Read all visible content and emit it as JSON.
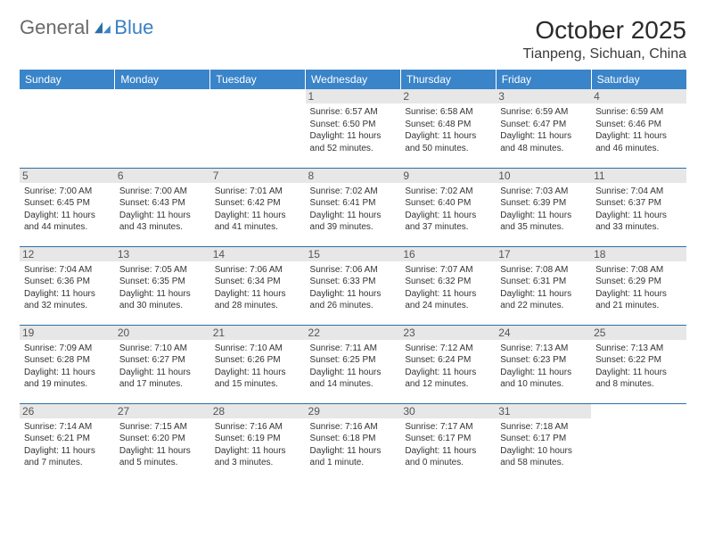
{
  "logo": {
    "text1": "General",
    "text2": "Blue"
  },
  "title": "October 2025",
  "location": "Tianpeng, Sichuan, China",
  "colors": {
    "header_bg": "#3a84c9",
    "header_text": "#ffffff",
    "day_bg": "#e7e7e7",
    "border": "#2c6fa8",
    "logo_accent": "#3a7fc4"
  },
  "weekdays": [
    "Sunday",
    "Monday",
    "Tuesday",
    "Wednesday",
    "Thursday",
    "Friday",
    "Saturday"
  ],
  "weeks": [
    [
      null,
      null,
      null,
      {
        "n": "1",
        "sr": "6:57 AM",
        "ss": "6:50 PM",
        "dl": "11 hours and 52 minutes."
      },
      {
        "n": "2",
        "sr": "6:58 AM",
        "ss": "6:48 PM",
        "dl": "11 hours and 50 minutes."
      },
      {
        "n": "3",
        "sr": "6:59 AM",
        "ss": "6:47 PM",
        "dl": "11 hours and 48 minutes."
      },
      {
        "n": "4",
        "sr": "6:59 AM",
        "ss": "6:46 PM",
        "dl": "11 hours and 46 minutes."
      }
    ],
    [
      {
        "n": "5",
        "sr": "7:00 AM",
        "ss": "6:45 PM",
        "dl": "11 hours and 44 minutes."
      },
      {
        "n": "6",
        "sr": "7:00 AM",
        "ss": "6:43 PM",
        "dl": "11 hours and 43 minutes."
      },
      {
        "n": "7",
        "sr": "7:01 AM",
        "ss": "6:42 PM",
        "dl": "11 hours and 41 minutes."
      },
      {
        "n": "8",
        "sr": "7:02 AM",
        "ss": "6:41 PM",
        "dl": "11 hours and 39 minutes."
      },
      {
        "n": "9",
        "sr": "7:02 AM",
        "ss": "6:40 PM",
        "dl": "11 hours and 37 minutes."
      },
      {
        "n": "10",
        "sr": "7:03 AM",
        "ss": "6:39 PM",
        "dl": "11 hours and 35 minutes."
      },
      {
        "n": "11",
        "sr": "7:04 AM",
        "ss": "6:37 PM",
        "dl": "11 hours and 33 minutes."
      }
    ],
    [
      {
        "n": "12",
        "sr": "7:04 AM",
        "ss": "6:36 PM",
        "dl": "11 hours and 32 minutes."
      },
      {
        "n": "13",
        "sr": "7:05 AM",
        "ss": "6:35 PM",
        "dl": "11 hours and 30 minutes."
      },
      {
        "n": "14",
        "sr": "7:06 AM",
        "ss": "6:34 PM",
        "dl": "11 hours and 28 minutes."
      },
      {
        "n": "15",
        "sr": "7:06 AM",
        "ss": "6:33 PM",
        "dl": "11 hours and 26 minutes."
      },
      {
        "n": "16",
        "sr": "7:07 AM",
        "ss": "6:32 PM",
        "dl": "11 hours and 24 minutes."
      },
      {
        "n": "17",
        "sr": "7:08 AM",
        "ss": "6:31 PM",
        "dl": "11 hours and 22 minutes."
      },
      {
        "n": "18",
        "sr": "7:08 AM",
        "ss": "6:29 PM",
        "dl": "11 hours and 21 minutes."
      }
    ],
    [
      {
        "n": "19",
        "sr": "7:09 AM",
        "ss": "6:28 PM",
        "dl": "11 hours and 19 minutes."
      },
      {
        "n": "20",
        "sr": "7:10 AM",
        "ss": "6:27 PM",
        "dl": "11 hours and 17 minutes."
      },
      {
        "n": "21",
        "sr": "7:10 AM",
        "ss": "6:26 PM",
        "dl": "11 hours and 15 minutes."
      },
      {
        "n": "22",
        "sr": "7:11 AM",
        "ss": "6:25 PM",
        "dl": "11 hours and 14 minutes."
      },
      {
        "n": "23",
        "sr": "7:12 AM",
        "ss": "6:24 PM",
        "dl": "11 hours and 12 minutes."
      },
      {
        "n": "24",
        "sr": "7:13 AM",
        "ss": "6:23 PM",
        "dl": "11 hours and 10 minutes."
      },
      {
        "n": "25",
        "sr": "7:13 AM",
        "ss": "6:22 PM",
        "dl": "11 hours and 8 minutes."
      }
    ],
    [
      {
        "n": "26",
        "sr": "7:14 AM",
        "ss": "6:21 PM",
        "dl": "11 hours and 7 minutes."
      },
      {
        "n": "27",
        "sr": "7:15 AM",
        "ss": "6:20 PM",
        "dl": "11 hours and 5 minutes."
      },
      {
        "n": "28",
        "sr": "7:16 AM",
        "ss": "6:19 PM",
        "dl": "11 hours and 3 minutes."
      },
      {
        "n": "29",
        "sr": "7:16 AM",
        "ss": "6:18 PM",
        "dl": "11 hours and 1 minute."
      },
      {
        "n": "30",
        "sr": "7:17 AM",
        "ss": "6:17 PM",
        "dl": "11 hours and 0 minutes."
      },
      {
        "n": "31",
        "sr": "7:18 AM",
        "ss": "6:17 PM",
        "dl": "10 hours and 58 minutes."
      },
      null
    ]
  ]
}
